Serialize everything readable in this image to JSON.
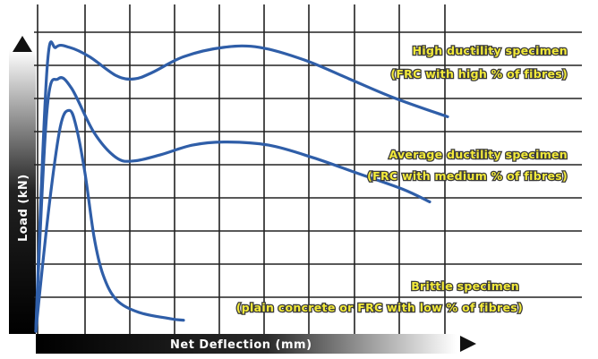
{
  "chart_data": {
    "type": "line",
    "xlabel": "Net Deflection (mm)",
    "ylabel": "Load (kN)",
    "grid": true,
    "series": [
      {
        "name": "High ductility specimen",
        "description": "(FRC with high % of fibres)",
        "color": "#2f5ea8",
        "points": [
          [
            0,
            0
          ],
          [
            0.25,
            8.3
          ],
          [
            0.45,
            9.0
          ],
          [
            0.75,
            9.0
          ],
          [
            1.2,
            8.7
          ],
          [
            1.8,
            8.1
          ],
          [
            2.2,
            8.0
          ],
          [
            2.6,
            8.2
          ],
          [
            3.3,
            8.7
          ],
          [
            4.2,
            9.0
          ],
          [
            5.0,
            9.0
          ],
          [
            6.0,
            8.6
          ],
          [
            7.0,
            8.0
          ],
          [
            8.0,
            7.4
          ],
          [
            9.2,
            6.8
          ]
        ]
      },
      {
        "name": "Average ductility specimen",
        "description": "(FRC with medium % of fibres)",
        "color": "#2f5ea8",
        "points": [
          [
            0,
            0
          ],
          [
            0.25,
            7.0
          ],
          [
            0.5,
            8.0
          ],
          [
            0.8,
            7.7
          ],
          [
            1.3,
            6.3
          ],
          [
            1.8,
            5.5
          ],
          [
            2.2,
            5.4
          ],
          [
            2.8,
            5.6
          ],
          [
            3.5,
            5.9
          ],
          [
            4.2,
            6.0
          ],
          [
            5.2,
            5.9
          ],
          [
            6.2,
            5.5
          ],
          [
            7.2,
            5.0
          ],
          [
            8.2,
            4.5
          ],
          [
            8.8,
            4.1
          ]
        ]
      },
      {
        "name": "Brittle specimen",
        "description": "(plain concrete or FRC with low % of fibres)",
        "color": "#2f5ea8",
        "points": [
          [
            0,
            0
          ],
          [
            0.3,
            4.0
          ],
          [
            0.55,
            6.5
          ],
          [
            0.75,
            7.0
          ],
          [
            0.9,
            6.5
          ],
          [
            1.1,
            5.0
          ],
          [
            1.3,
            3.0
          ],
          [
            1.5,
            1.8
          ],
          [
            1.8,
            1.0
          ],
          [
            2.3,
            0.6
          ],
          [
            3.0,
            0.4
          ],
          [
            3.3,
            0.35
          ]
        ]
      }
    ],
    "xlim": [
      0,
      12
    ],
    "ylim": [
      0,
      10.5
    ]
  }
}
